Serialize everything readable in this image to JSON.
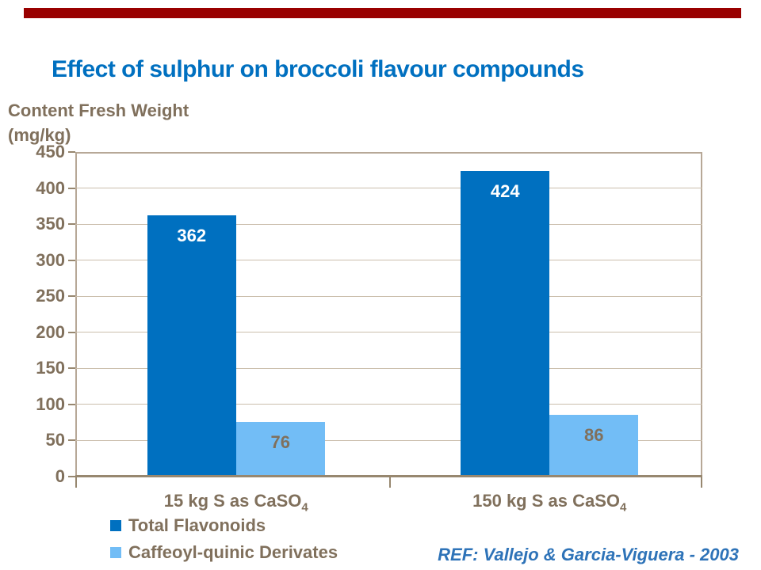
{
  "slide": {
    "ref_note": "REF: Vallejo & Garcia-Viguera - 2003"
  },
  "colors": {
    "accent_red": "#990000",
    "title_blue": "#0070C0",
    "taupe": "#80705C",
    "frame_tan": "#B7A897",
    "grid_tan": "#CBBEAC",
    "axis_dark_tan": "#97876F",
    "ref_blue": "#2E73B8",
    "dark_blue": "#0070C0",
    "light_blue": "#72BDF6"
  },
  "chart_data": {
    "type": "bar",
    "title": "Effect of sulphur on broccoli flavour compounds",
    "ylabel": "Content Fresh Weight (mg/kg)",
    "ylabel_line1": "Content Fresh Weight",
    "ylabel_line2": "(mg/kg)",
    "categories": [
      {
        "text": "15 kg S as CaSO",
        "sub": "4"
      },
      {
        "text": "150 kg S as CaSO",
        "sub": "4"
      }
    ],
    "series": [
      {
        "name": "Total Flavonoids",
        "color": "#0070C0",
        "label_color": "#FFFFFF",
        "values": [
          362,
          424
        ]
      },
      {
        "name": "Caffeoyl-quinic Derivates",
        "color": "#72BDF6",
        "label_color": "#80705C",
        "values": [
          76,
          86
        ]
      }
    ],
    "ylim": [
      0,
      450
    ],
    "ytick_step": 50,
    "yticks": [
      0,
      50,
      100,
      150,
      200,
      250,
      300,
      350,
      400,
      450
    ],
    "grid": true,
    "legend_position": "bottom-left"
  }
}
